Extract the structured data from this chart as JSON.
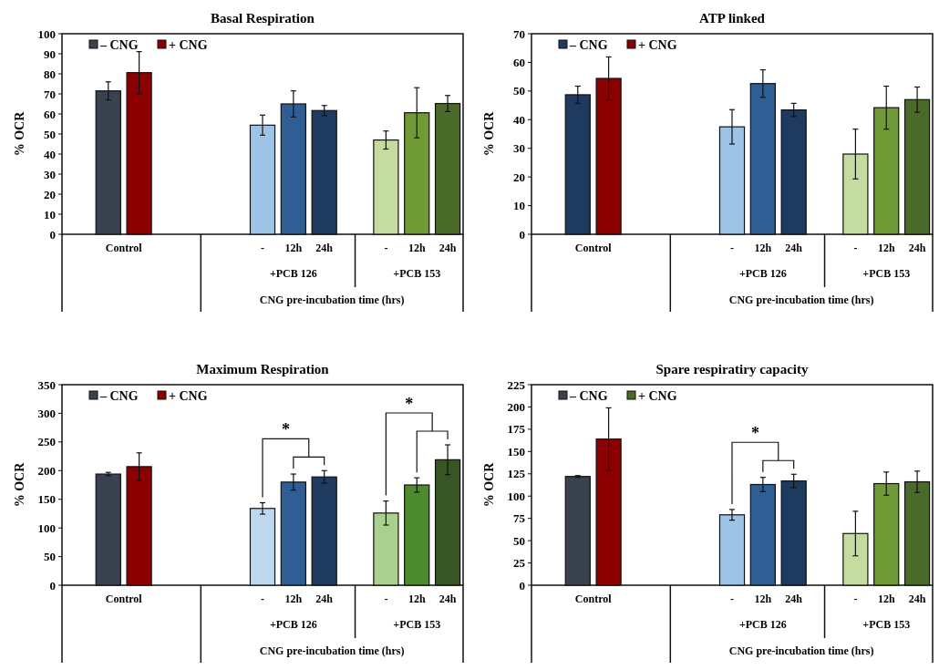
{
  "chart_data": [
    {
      "type": "bar",
      "title": "Basal Respiration",
      "ylabel": "% OCR",
      "xlabel": "CNG pre-incubation time (hrs)",
      "categories": [
        null,
        null,
        null,
        null,
        null,
        null,
        "-",
        "12h",
        "24h",
        null,
        "-",
        "12h",
        "24h"
      ],
      "ylim": [
        0,
        100
      ],
      "yticks": [
        0,
        10,
        20,
        30,
        40,
        50,
        60,
        70,
        80,
        90,
        100
      ],
      "legend": "top left",
      "annotations": [
        "Control",
        "+PCB 126",
        "+PCB 153"
      ],
      "series": [
        {
          "name": "– CNG",
          "color": "#3a4250",
          "colors": [
            null,
            "#3a4250",
            null,
            null,
            null,
            null,
            "#9dc3e6",
            null,
            null,
            null,
            "#c5dca0",
            null,
            null
          ],
          "values": [
            null,
            71.5,
            null,
            null,
            null,
            null,
            54.4,
            null,
            null,
            null,
            47,
            null,
            null
          ],
          "errors": [
            null,
            4.5,
            null,
            null,
            null,
            null,
            5,
            null,
            null,
            null,
            4.5,
            null,
            null
          ]
        },
        {
          "name": "+ CNG",
          "color": "#8b0000",
          "colors": [
            null,
            null,
            "#8b0000",
            null,
            null,
            null,
            null,
            "#2e5e94",
            "#1f3a5f",
            null,
            null,
            "#6f9a35",
            "#4a6a2a"
          ],
          "values": [
            null,
            null,
            80.6,
            null,
            null,
            null,
            null,
            65,
            61.7,
            null,
            null,
            60.6,
            65.2
          ],
          "errors": [
            null,
            null,
            10.5,
            null,
            null,
            null,
            null,
            6.5,
            2.5,
            null,
            null,
            12.5,
            4
          ]
        }
      ]
    },
    {
      "type": "bar",
      "title": "ATP linked",
      "ylabel": "% OCR",
      "xlabel": "CNG pre-incubation time (hrs)",
      "categories": [
        null,
        null,
        null,
        null,
        null,
        null,
        "-",
        "12h",
        "24h",
        null,
        "-",
        "12h",
        "24h"
      ],
      "ylim": [
        0,
        70
      ],
      "yticks": [
        0,
        10,
        20,
        30,
        40,
        50,
        60,
        70
      ],
      "legend": "top left",
      "annotations": [
        "Control",
        "+PCB 126",
        "+PCB 153"
      ],
      "series": [
        {
          "name": "– CNG",
          "color": "#1f3a5f",
          "colors": [
            null,
            "#1f3a5f",
            null,
            null,
            null,
            null,
            "#9dc3e6",
            null,
            null,
            null,
            "#c5dca0",
            null,
            null
          ],
          "values": [
            null,
            48.7,
            null,
            null,
            null,
            null,
            37.5,
            null,
            null,
            null,
            28,
            null,
            null
          ],
          "errors": [
            null,
            3,
            null,
            null,
            null,
            null,
            6,
            null,
            null,
            null,
            8.7,
            null,
            null
          ]
        },
        {
          "name": "+ CNG",
          "color": "#8b0000",
          "colors": [
            null,
            null,
            "#8b0000",
            null,
            null,
            null,
            null,
            "#2e5e94",
            "#1f3a5f",
            null,
            null,
            "#6f9a35",
            "#4a6a2a"
          ],
          "values": [
            null,
            null,
            54.4,
            null,
            null,
            null,
            null,
            52.6,
            43.4,
            null,
            null,
            44.2,
            47
          ],
          "errors": [
            null,
            null,
            7.5,
            null,
            null,
            null,
            null,
            4.8,
            2.3,
            null,
            null,
            7.5,
            4.4
          ]
        }
      ]
    },
    {
      "type": "bar",
      "title": "Maximum  Respiration",
      "ylabel": "% OCR",
      "xlabel": "CNG pre-incubation time (hrs)",
      "categories": [
        null,
        null,
        null,
        null,
        null,
        null,
        "-",
        "12h",
        "24h",
        null,
        "-",
        "12h",
        "24h"
      ],
      "ylim": [
        0,
        350
      ],
      "yticks": [
        0,
        50,
        100,
        150,
        200,
        250,
        300,
        350
      ],
      "legend": "top left",
      "annotations": [
        "Control",
        "+PCB 126",
        "+PCB 153",
        "*",
        "*"
      ],
      "series": [
        {
          "name": "– CNG",
          "color": "#3a4250",
          "colors": [
            null,
            "#3a4250",
            null,
            null,
            null,
            null,
            "#bdd7ee",
            null,
            null,
            null,
            "#a9d08e",
            null,
            null
          ],
          "values": [
            null,
            194,
            null,
            null,
            null,
            null,
            134,
            null,
            null,
            null,
            126,
            null,
            null
          ],
          "errors": [
            null,
            3,
            null,
            null,
            null,
            null,
            10,
            null,
            null,
            null,
            21,
            null,
            null
          ]
        },
        {
          "name": "+ CNG",
          "color": "#8b0000",
          "colors": [
            null,
            null,
            "#8b0000",
            null,
            null,
            null,
            null,
            "#2e5e94",
            "#1f3a5f",
            null,
            null,
            "#4e8a2e",
            "#375623"
          ],
          "values": [
            null,
            null,
            207,
            null,
            null,
            null,
            null,
            180,
            189,
            null,
            null,
            175,
            219
          ],
          "errors": [
            null,
            null,
            24,
            null,
            null,
            null,
            null,
            14,
            11,
            null,
            null,
            12.5,
            26
          ]
        }
      ]
    },
    {
      "type": "bar",
      "title": "Spare respiratiry  capacity",
      "ylabel": "% OCR",
      "xlabel": "CNG pre-incubation time (hrs)",
      "categories": [
        null,
        null,
        null,
        null,
        null,
        null,
        "-",
        "12h",
        "24h",
        null,
        "-",
        "12h",
        "24h"
      ],
      "ylim": [
        0,
        225
      ],
      "yticks": [
        0,
        25,
        50,
        75,
        100,
        125,
        150,
        175,
        200,
        225
      ],
      "legend": "top left",
      "annotations": [
        "Control",
        "+PCB 126",
        "+PCB 153",
        "*"
      ],
      "series": [
        {
          "name": "– CNG",
          "color": "#3a4250",
          "colors": [
            null,
            "#3a4250",
            null,
            null,
            null,
            null,
            "#9dc3e6",
            null,
            null,
            null,
            "#c5dca0",
            null,
            null
          ],
          "values": [
            null,
            122,
            null,
            null,
            null,
            null,
            79,
            null,
            null,
            null,
            58,
            null,
            null
          ],
          "errors": [
            null,
            1,
            null,
            null,
            null,
            null,
            6,
            null,
            null,
            null,
            25,
            null,
            null
          ]
        },
        {
          "name": "+ CNG",
          "color": "#4a6a2a",
          "colors": [
            null,
            null,
            "#8b0000",
            null,
            null,
            null,
            null,
            "#2e5e94",
            "#1f3a5f",
            null,
            null,
            "#6f9a35",
            "#4a6a2a"
          ],
          "values": [
            null,
            null,
            164,
            null,
            null,
            null,
            null,
            113,
            117,
            null,
            null,
            114,
            116
          ],
          "errors": [
            null,
            null,
            35,
            null,
            null,
            null,
            null,
            8,
            7.5,
            null,
            null,
            13,
            12
          ]
        }
      ]
    }
  ]
}
